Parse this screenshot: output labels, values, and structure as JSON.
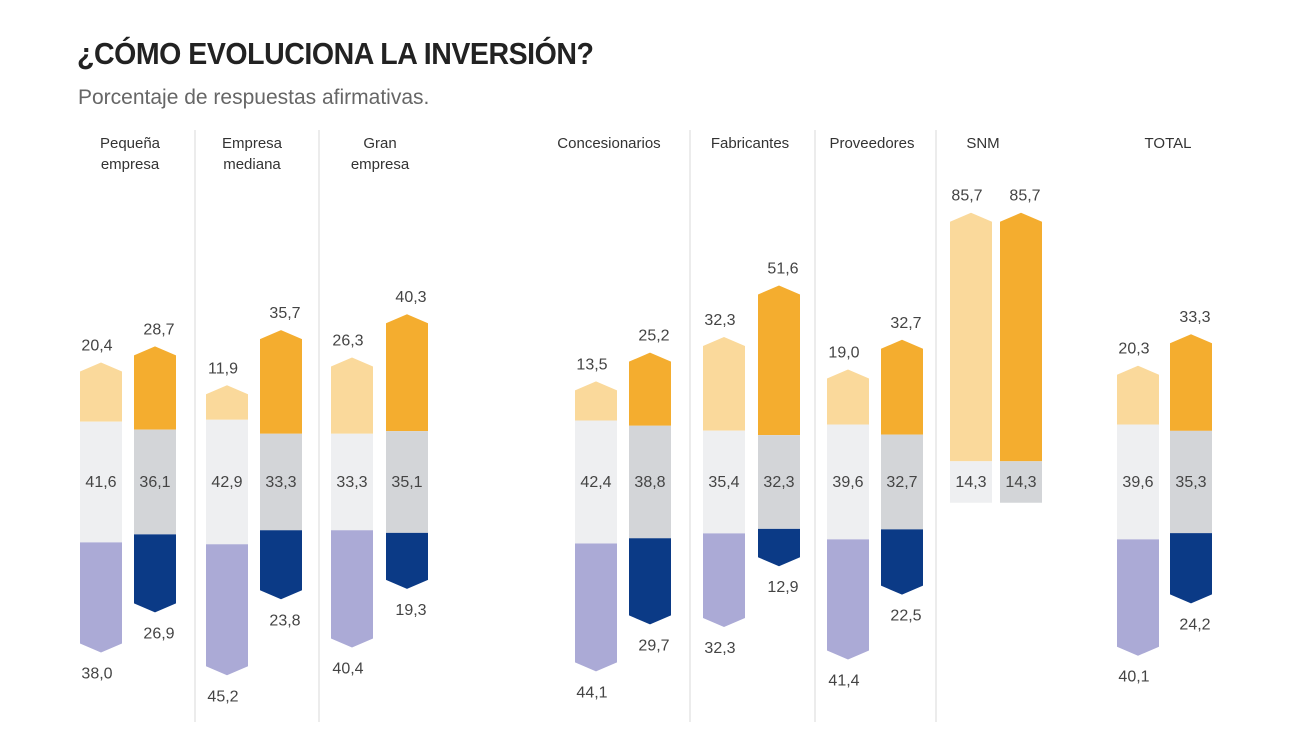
{
  "chart_data": {
    "type": "bar",
    "title": "¿CÓMO EVOLUCIONA LA INVERSIÓN?",
    "subtitle": "Porcentaje de respuestas afirmativas.",
    "stacked": true,
    "grid": false,
    "legend": "none",
    "colors": {
      "bar1": {
        "top": "#fad99b",
        "middle": "#eeeff1",
        "bottom": "#abaad6"
      },
      "bar2": {
        "top": "#f4ad2f",
        "middle": "#d3d5d8",
        "bottom": "#0b3a86"
      }
    },
    "groups": [
      {
        "label": [
          "Pequeña",
          "empresa"
        ],
        "bars": [
          {
            "top": "20,4",
            "middle": "41,6",
            "bottom": "38,0"
          },
          {
            "top": "28,7",
            "middle": "36,1",
            "bottom": "26,9"
          }
        ]
      },
      {
        "label": [
          "Empresa",
          "mediana"
        ],
        "bars": [
          {
            "top": "11,9",
            "middle": "42,9",
            "bottom": "45,2"
          },
          {
            "top": "35,7",
            "middle": "33,3",
            "bottom": "23,8"
          }
        ]
      },
      {
        "label": [
          "Gran",
          "empresa"
        ],
        "bars": [
          {
            "top": "26,3",
            "middle": "33,3",
            "bottom": "40,4"
          },
          {
            "top": "40,3",
            "middle": "35,1",
            "bottom": "19,3"
          }
        ]
      },
      {
        "label": [
          "Concesionarios"
        ],
        "bars": [
          {
            "top": "13,5",
            "middle": "42,4",
            "bottom": "44,1"
          },
          {
            "top": "25,2",
            "middle": "38,8",
            "bottom": "29,7"
          }
        ]
      },
      {
        "label": [
          "Fabricantes"
        ],
        "bars": [
          {
            "top": "32,3",
            "middle": "35,4",
            "bottom": "32,3"
          },
          {
            "top": "51,6",
            "middle": "32,3",
            "bottom": "12,9"
          }
        ]
      },
      {
        "label": [
          "Proveedores"
        ],
        "bars": [
          {
            "top": "19,0",
            "middle": "39,6",
            "bottom": "41,4"
          },
          {
            "top": "32,7",
            "middle": "32,7",
            "bottom": "22,5"
          }
        ]
      },
      {
        "label": [
          "SNM"
        ],
        "bars": [
          {
            "top": "85,7",
            "middle": "14,3",
            "bottom": null
          },
          {
            "top": "85,7",
            "middle": "14,3",
            "bottom": null
          }
        ]
      },
      {
        "label": [
          "TOTAL"
        ],
        "bars": [
          {
            "top": "20,3",
            "middle": "39,6",
            "bottom": "40,1"
          },
          {
            "top": "33,3",
            "middle": "35,3",
            "bottom": "24,2"
          }
        ]
      }
    ]
  }
}
